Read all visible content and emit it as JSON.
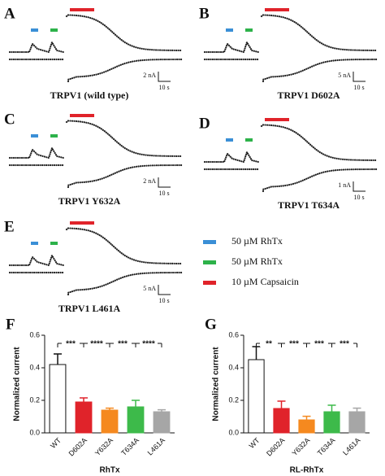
{
  "panels": [
    {
      "letter": "A",
      "caption": "TRPV1 (wild type)",
      "scale_current": "2 nA",
      "scale_time": "10 s"
    },
    {
      "letter": "B",
      "caption": "TRPV1 D602A",
      "scale_current": "5 nA",
      "scale_time": "10 s"
    },
    {
      "letter": "C",
      "caption": "TRPV1 Y632A",
      "scale_current": "2 nA",
      "scale_time": "10 s"
    },
    {
      "letter": "D",
      "caption": "TRPV1 T634A",
      "scale_current": "1 nA",
      "scale_time": "10 s"
    },
    {
      "letter": "E",
      "caption": "TRPV1 L461A",
      "scale_current": "5 nA",
      "scale_time": "10 s"
    }
  ],
  "legend": [
    {
      "label": "50 µM RhTx",
      "color": "#3a8fd6"
    },
    {
      "label": "50 µM RhTx",
      "color": "#2db24a"
    },
    {
      "label": "10 µM Capsaicin",
      "color": "#e0232a"
    }
  ],
  "chart_data": [
    {
      "type": "bar",
      "panel_label": "F",
      "xlabel": "RhTx",
      "ylabel": "Normalized current",
      "categories": [
        "WT",
        "D602A",
        "Y632A",
        "T634A",
        "L461A"
      ],
      "values": [
        0.42,
        0.19,
        0.14,
        0.16,
        0.13
      ],
      "errors": [
        0.065,
        0.025,
        0.012,
        0.04,
        0.012
      ],
      "colors": [
        "#ffffff",
        "#e0232a",
        "#f5891f",
        "#3dba4a",
        "#a6a6a6"
      ],
      "annotations": [
        "***",
        "****",
        "***",
        "****"
      ],
      "ylim": [
        0,
        0.6
      ],
      "yticks": [
        {
          "value": 0,
          "label": "0.0"
        },
        0.2,
        0.4,
        0.6
      ]
    },
    {
      "type": "bar",
      "panel_label": "G",
      "xlabel": "RL-RhTx",
      "ylabel": "Normalized current",
      "categories": [
        "WT",
        "D602A",
        "Y632A",
        "T634A",
        "L461A"
      ],
      "values": [
        0.45,
        0.15,
        0.08,
        0.13,
        0.13
      ],
      "errors": [
        0.08,
        0.045,
        0.022,
        0.04,
        0.022
      ],
      "colors": [
        "#ffffff",
        "#e0232a",
        "#f5891f",
        "#3dba4a",
        "#a6a6a6"
      ],
      "annotations": [
        "**",
        "***",
        "***",
        "***"
      ],
      "ylim": [
        0,
        0.6
      ],
      "yticks": [
        {
          "value": 0,
          "label": "0.0"
        },
        0.2,
        0.4,
        0.6
      ]
    }
  ]
}
